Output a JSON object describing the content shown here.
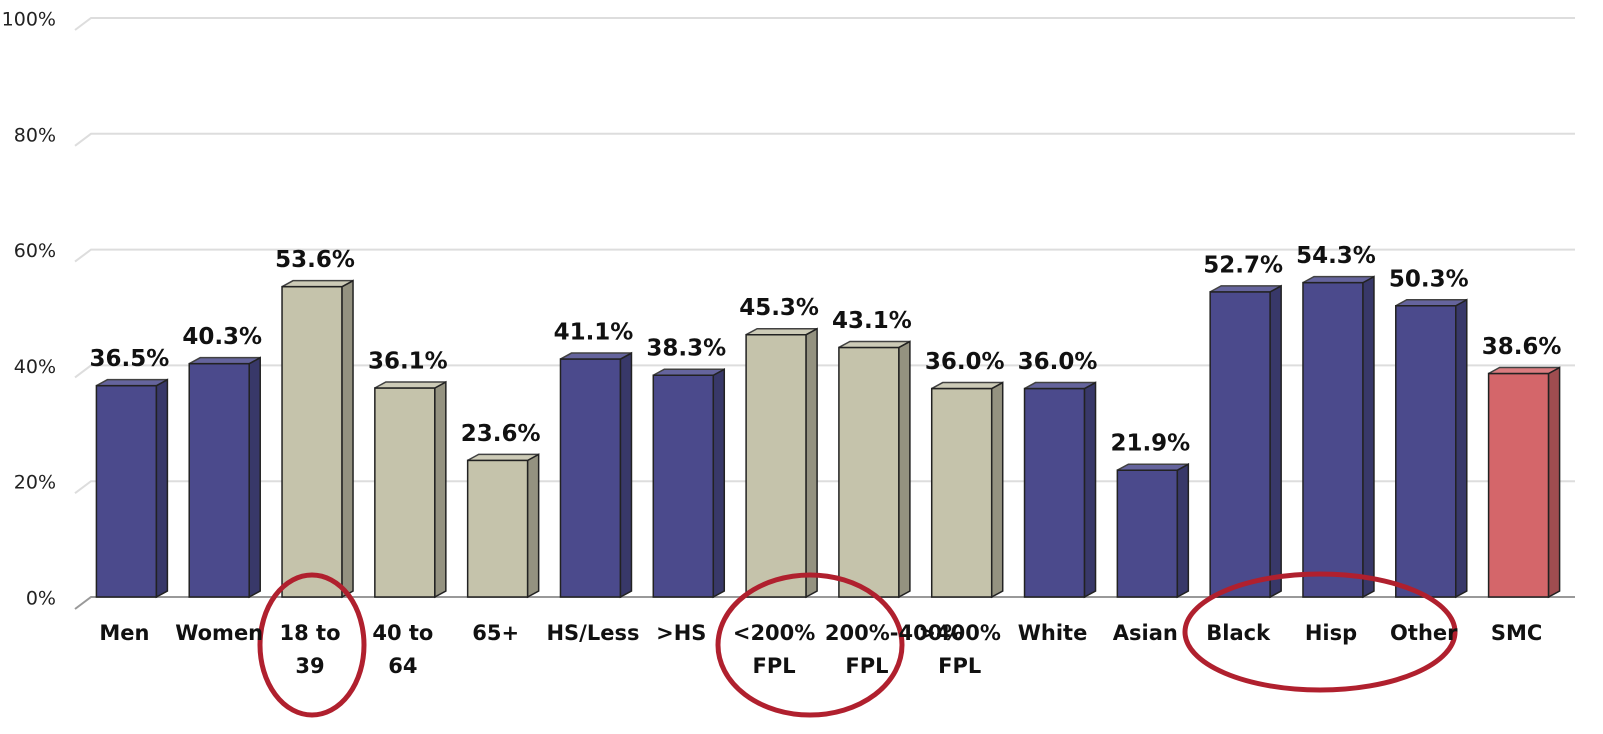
{
  "chart_data": {
    "type": "bar",
    "categories": [
      "Men",
      "Women",
      "18 to 39",
      "40 to 64",
      "65+",
      "HS/Less",
      ">HS",
      "<200% FPL",
      "200%-400% FPL",
      ">400% FPL",
      "White",
      "Asian",
      "Black",
      "Hisp",
      "Other",
      "SMC"
    ],
    "values": [
      36.5,
      40.3,
      53.6,
      36.1,
      23.6,
      41.1,
      38.3,
      45.3,
      43.1,
      36.0,
      36.0,
      21.9,
      52.7,
      54.3,
      50.3,
      38.6
    ],
    "value_labels": [
      "36.5%",
      "40.3%",
      "53.6%",
      "36.1%",
      "23.6%",
      "41.1%",
      "38.3%",
      "45.3%",
      "43.1%",
      "36.0%",
      "36.0%",
      "21.9%",
      "52.7%",
      "54.3%",
      "50.3%",
      "38.6%"
    ],
    "colors": [
      "#4b4a8c",
      "#4b4a8c",
      "#c5c3ab",
      "#c5c3ab",
      "#c5c3ab",
      "#4b4a8c",
      "#4b4a8c",
      "#c5c3ab",
      "#c5c3ab",
      "#c5c3ab",
      "#4b4a8c",
      "#4b4a8c",
      "#4b4a8c",
      "#4b4a8c",
      "#4b4a8c",
      "#d4666a"
    ],
    "ylim": [
      0,
      100
    ],
    "yticks": [
      {
        "value": 0,
        "label": "0%"
      },
      {
        "value": 20,
        "label": "20%"
      },
      {
        "value": 40,
        "label": "40%"
      },
      {
        "value": 60,
        "label": "60%"
      },
      {
        "value": 80,
        "label": "80%"
      },
      {
        "value": 100,
        "label": "100%"
      }
    ],
    "grid": true
  }
}
